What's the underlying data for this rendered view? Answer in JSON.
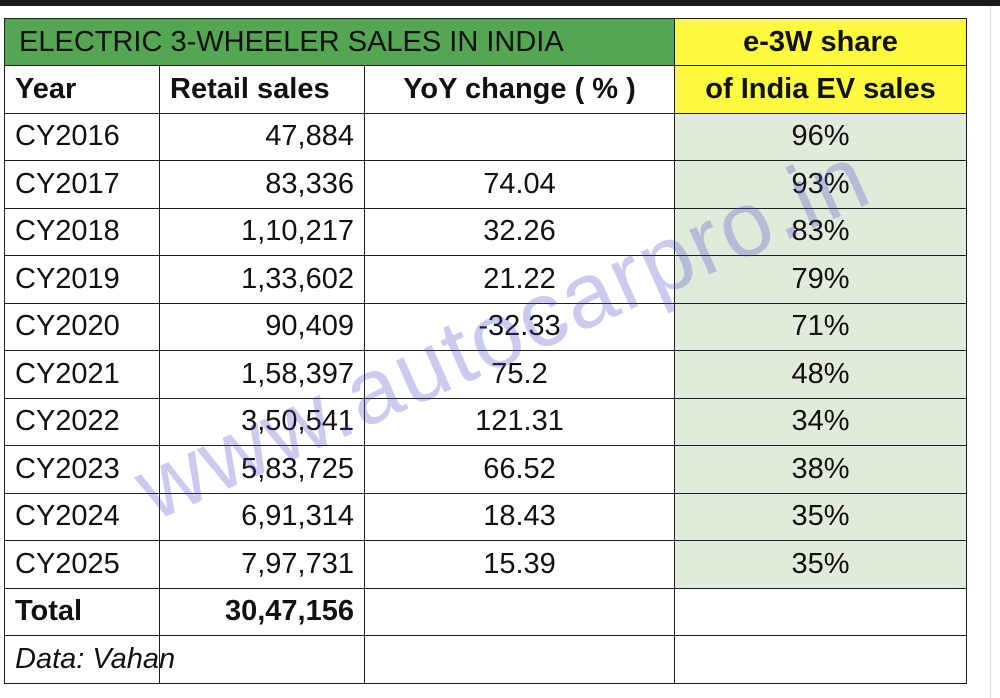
{
  "title": "ELECTRIC 3-WHEELER SALES IN INDIA",
  "share_header_line1": "e-3W share",
  "columns": {
    "year": "Year",
    "retail": "Retail sales",
    "yoy": "YoY change ( % )",
    "share": "of India EV sales"
  },
  "rows": [
    {
      "year": "CY2016",
      "retail": "47,884",
      "yoy": "",
      "share": "96%"
    },
    {
      "year": "CY2017",
      "retail": "83,336",
      "yoy": "74.04",
      "share": "93%"
    },
    {
      "year": "CY2018",
      "retail": "1,10,217",
      "yoy": "32.26",
      "share": "83%"
    },
    {
      "year": "CY2019",
      "retail": "1,33,602",
      "yoy": "21.22",
      "share": "79%"
    },
    {
      "year": "CY2020",
      "retail": "90,409",
      "yoy": "-32.33",
      "share": "71%"
    },
    {
      "year": "CY2021",
      "retail": "1,58,397",
      "yoy": "75.2",
      "share": "48%"
    },
    {
      "year": "CY2022",
      "retail": "3,50,541",
      "yoy": "121.31",
      "share": "34%"
    },
    {
      "year": "CY2023",
      "retail": "5,83,725",
      "yoy": "66.52",
      "share": "38%"
    },
    {
      "year": "CY2024",
      "retail": "6,91,314",
      "yoy": "18.43",
      "share": "35%"
    },
    {
      "year": "CY2025",
      "retail": "7,97,731",
      "yoy": "15.39",
      "share": "35%"
    }
  ],
  "total": {
    "label": "Total",
    "retail": "30,47,156"
  },
  "source": "Data: Vahan",
  "watermark": "www.autocarpro.in",
  "colors": {
    "title_bg": "#54a653",
    "share_header_bg": "#fefb3e",
    "share_cell_bg": "#e1ebdb",
    "watermark": "#4646c8"
  }
}
